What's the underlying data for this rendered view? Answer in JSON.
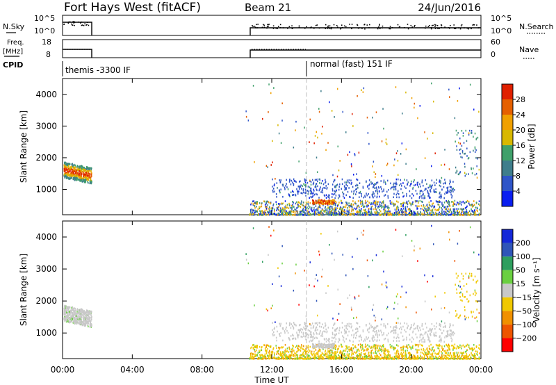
{
  "header": {
    "station": "Fort Hays West (fitACF)",
    "beam": "Beam 21",
    "date": "24/Jun/2016"
  },
  "left_labels": {
    "nsky": "N.Sky",
    "freq": "Freq.",
    "freq_unit": "[MHz]",
    "cpid": "CPID"
  },
  "right_labels": {
    "nsearch": "N.Search",
    "nave": "Nave"
  },
  "noise_panel": {
    "left_ticks": [
      "10^5",
      "10^0"
    ],
    "right_ticks": [
      "10^5",
      "10^0"
    ]
  },
  "freq_panel": {
    "left_ticks": [
      "18",
      "8"
    ],
    "right_ticks": [
      "60",
      "0"
    ]
  },
  "cpid": {
    "modes": [
      {
        "label": "themis -3300 IF"
      },
      {
        "label": "normal (fast) 151 IF"
      }
    ]
  },
  "colors": {
    "power": [
      "#0a1ef0",
      "#2f55c8",
      "#3f7e8c",
      "#3fa06a",
      "#d8b800",
      "#f0a000",
      "#e56000",
      "#e02000"
    ],
    "velocity": [
      "#ff0000",
      "#ee5500",
      "#f09000",
      "#f0c800",
      "#c8c8c8",
      "#6ad040",
      "#2e9e5e",
      "#2f55b8",
      "#1428d8"
    ]
  },
  "chart_data": [
    {
      "type": "heatmap",
      "name": "power",
      "ylabel": "Slant Range [km]",
      "yticks": [
        "1000",
        "2000",
        "3000",
        "4000"
      ],
      "ylim": [
        200,
        4500
      ],
      "xlim_hours": [
        0,
        24
      ],
      "colorbar_label": "Power [dB]",
      "colorbar_ticks": [
        "4",
        "8",
        "12",
        "16",
        "20",
        "24",
        "28"
      ],
      "colorbar_range": [
        0,
        32
      ]
    },
    {
      "type": "heatmap",
      "name": "velocity",
      "ylabel": "Slant Range [km]",
      "yticks": [
        "1000",
        "2000",
        "3000",
        "4000"
      ],
      "ylim": [
        200,
        4500
      ],
      "xlim_hours": [
        0,
        24
      ],
      "xticks": [
        "00:00",
        "04:00",
        "08:00",
        "12:00",
        "16:00",
        "20:00",
        "00:00"
      ],
      "xlabel": "Time UT",
      "colorbar_label": "Velocity [m s⁻¹]",
      "colorbar_ticks": [
        "200",
        "100",
        "50",
        "15",
        "−15",
        "−50",
        "−100",
        "−200"
      ]
    }
  ]
}
